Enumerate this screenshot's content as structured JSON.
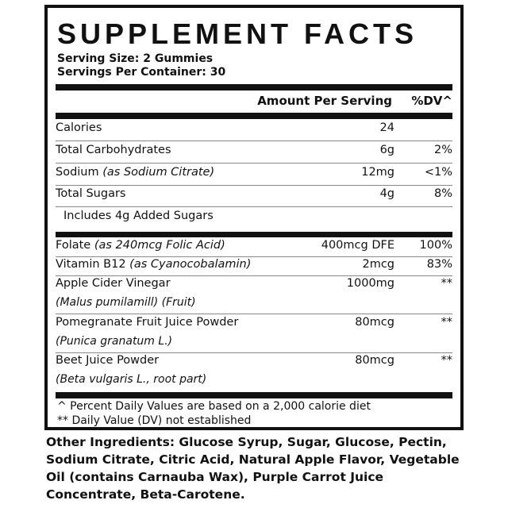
{
  "title": "SUPPLEMENT FACTS",
  "serving_size": "Serving Size: 2 Gummies",
  "servings_per_container": "Servings Per Container: 30",
  "header": {
    "amount": "Amount Per Serving",
    "dv": "%DV^"
  },
  "rows": [
    {
      "name": "Calories",
      "detail": "",
      "amount": "24",
      "dv": ""
    },
    {
      "name": "Total Carbohydrates",
      "detail": "",
      "amount": "6g",
      "dv": "2%"
    },
    {
      "name": "Sodium",
      "detail": "(as Sodium Citrate)",
      "amount": "12mg",
      "dv": "<1%"
    },
    {
      "name": "Total Sugars",
      "detail": "",
      "amount": "4g",
      "dv": "8%"
    },
    {
      "name": "Includes 4g Added Sugars",
      "detail": "",
      "amount": "",
      "dv": ""
    }
  ],
  "rows2": [
    {
      "name": "Folate",
      "detail": "(as 240mcg Folic Acid)",
      "amount": "400mcg DFE",
      "dv": "100%"
    },
    {
      "name": "Vitamin B12",
      "detail": "(as Cyanocobalamin)",
      "amount": "2mcg",
      "dv": "83%"
    },
    {
      "name": "Apple Cider Vinegar",
      "sub": "(Malus pumilamill) (Fruit)",
      "amount": "1000mg",
      "dv": "**"
    },
    {
      "name": "Pomegranate Fruit Juice Powder",
      "sub": "(Punica granatum L.)",
      "amount": "80mcg",
      "dv": "**"
    },
    {
      "name": "Beet Juice Powder",
      "sub": "(Beta vulgaris L., root part)",
      "amount": "80mcg",
      "dv": "**"
    }
  ],
  "footnotes": [
    "^ Percent Daily Values are based on a 2,000 calorie diet",
    "** Daily Value (DV) not established"
  ],
  "other_ingredients": "Other Ingredients: Glucose Syrup, Sugar, Glucose, Pectin, Sodium Citrate, Citric Acid, Natural Apple Flavor, Vegetable Oil (contains Carnauba Wax), Purple Carrot Juice Concentrate, Beta-Carotene."
}
